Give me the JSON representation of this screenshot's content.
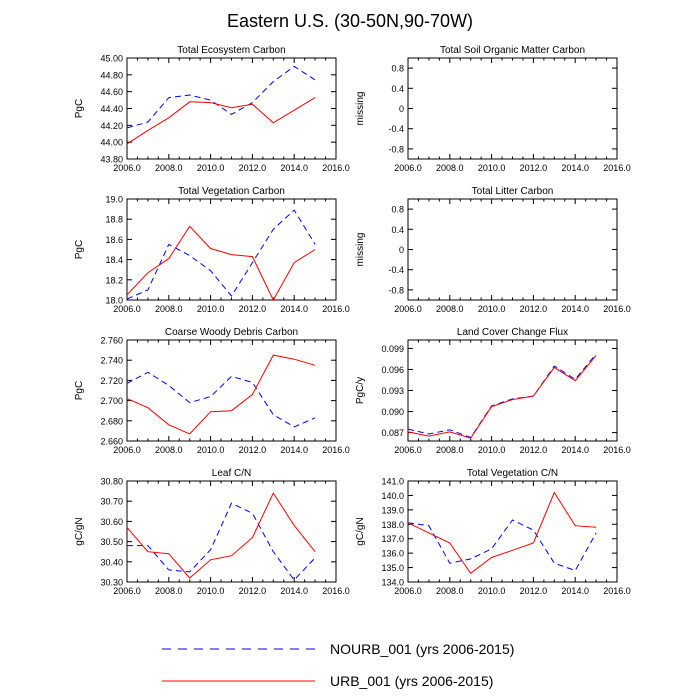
{
  "figure": {
    "title": "Eastern U.S. (30-50N,90-70W)"
  },
  "legend": [
    {
      "label": "NOURB_001 (yrs 2006-2015)",
      "color": "#0000ff",
      "style": "dashed"
    },
    {
      "label": "URB_001 (yrs 2006-2015)",
      "color": "#ff0000",
      "style": "solid"
    }
  ],
  "chart_data": [
    {
      "type": "line",
      "title": "Total Ecosystem Carbon",
      "ylabel": "PgC",
      "xlim": [
        2006,
        2016
      ],
      "xticks": [
        "2006.0",
        "2008.0",
        "2010.0",
        "2012.0",
        "2014.0",
        "2016.0"
      ],
      "ylim": [
        43.8,
        45.0
      ],
      "yticks": [
        "43.80",
        "44.00",
        "44.20",
        "44.40",
        "44.60",
        "44.80",
        "45.00"
      ],
      "x": [
        2006,
        2007,
        2008,
        2009,
        2010,
        2011,
        2012,
        2013,
        2014,
        2015
      ],
      "series": [
        {
          "name": "NOURB_001 (yrs 2006-2015)",
          "values": [
            44.17,
            44.24,
            44.53,
            44.56,
            44.5,
            44.33,
            44.47,
            44.72,
            44.9,
            44.74
          ]
        },
        {
          "name": "URB_001 (yrs 2006-2015)",
          "values": [
            43.98,
            44.14,
            44.29,
            44.48,
            44.47,
            44.41,
            44.45,
            44.23,
            44.38,
            44.53
          ]
        }
      ]
    },
    {
      "type": "line",
      "title": "Total Soil Organic Matter Carbon",
      "ylabel": "missing",
      "xlim": [
        2006,
        2016
      ],
      "xticks": [
        "2006.0",
        "2008.0",
        "2010.0",
        "2012.0",
        "2014.0",
        "2016.0"
      ],
      "ylim": [
        -1.0,
        1.0
      ],
      "yticks": [
        "-0.8",
        "-0.4",
        "0",
        "0.4",
        "0.8"
      ],
      "x": [],
      "series": []
    },
    {
      "type": "line",
      "title": "Total Vegetation Carbon",
      "ylabel": "PgC",
      "xlim": [
        2006,
        2016
      ],
      "xticks": [
        "2006.0",
        "2008.0",
        "2010.0",
        "2012.0",
        "2014.0",
        "2016.0"
      ],
      "ylim": [
        18.0,
        19.0
      ],
      "yticks": [
        "18.0",
        "18.2",
        "18.4",
        "18.6",
        "18.8",
        "19.0"
      ],
      "x": [
        2006,
        2007,
        2008,
        2009,
        2010,
        2011,
        2012,
        2013,
        2014,
        2015
      ],
      "series": [
        {
          "name": "NOURB_001 (yrs 2006-2015)",
          "values": [
            18.01,
            18.1,
            18.55,
            18.44,
            18.29,
            18.04,
            18.37,
            18.7,
            18.89,
            18.55
          ]
        },
        {
          "name": "URB_001 (yrs 2006-2015)",
          "values": [
            18.05,
            18.27,
            18.41,
            18.73,
            18.51,
            18.45,
            18.43,
            18.0,
            18.37,
            18.5
          ]
        }
      ]
    },
    {
      "type": "line",
      "title": "Total Litter Carbon",
      "ylabel": "missing",
      "xlim": [
        2006,
        2016
      ],
      "xticks": [
        "2006.0",
        "2008.0",
        "2010.0",
        "2012.0",
        "2014.0",
        "2016.0"
      ],
      "ylim": [
        -1.0,
        1.0
      ],
      "yticks": [
        "-0.8",
        "-0.4",
        "0",
        "0.4",
        "0.8"
      ],
      "x": [],
      "series": []
    },
    {
      "type": "line",
      "title": "Coarse Woody Debris Carbon",
      "ylabel": "PgC",
      "xlim": [
        2006,
        2016
      ],
      "xticks": [
        "2006.0",
        "2008.0",
        "2010.0",
        "2012.0",
        "2014.0",
        "2016.0"
      ],
      "ylim": [
        2.66,
        2.76
      ],
      "yticks": [
        "2.660",
        "2.680",
        "2.700",
        "2.720",
        "2.740",
        "2.760"
      ],
      "x": [
        2006,
        2007,
        2008,
        2009,
        2010,
        2011,
        2012,
        2013,
        2014,
        2015
      ],
      "series": [
        {
          "name": "NOURB_001 (yrs 2006-2015)",
          "values": [
            2.717,
            2.728,
            2.715,
            2.698,
            2.704,
            2.724,
            2.718,
            2.686,
            2.674,
            2.683
          ]
        },
        {
          "name": "URB_001 (yrs 2006-2015)",
          "values": [
            2.702,
            2.693,
            2.676,
            2.667,
            2.689,
            2.69,
            2.706,
            2.745,
            2.741,
            2.735
          ]
        }
      ]
    },
    {
      "type": "line",
      "title": "Land Cover Change Flux",
      "ylabel": "PgC/y",
      "xlim": [
        2006,
        2016
      ],
      "xticks": [
        "2006.0",
        "2008.0",
        "2010.0",
        "2012.0",
        "2014.0",
        "2016.0"
      ],
      "ylim": [
        0.0858,
        0.1002
      ],
      "yticks": [
        "0.087",
        "0.090",
        "0.093",
        "0.096",
        "0.099"
      ],
      "x": [
        2006,
        2007,
        2008,
        2009,
        2010,
        2011,
        2012,
        2013,
        2014,
        2015
      ],
      "series": [
        {
          "name": "NOURB_001 (yrs 2006-2015)",
          "values": [
            0.0875,
            0.0868,
            0.0874,
            0.0863,
            0.0908,
            0.0918,
            0.0922,
            0.0965,
            0.0946,
            0.0982
          ]
        },
        {
          "name": "URB_001 (yrs 2006-2015)",
          "values": [
            0.0871,
            0.0865,
            0.0871,
            0.0862,
            0.0907,
            0.0917,
            0.0922,
            0.0963,
            0.0944,
            0.098
          ]
        }
      ]
    },
    {
      "type": "line",
      "title": "Leaf C/N",
      "ylabel": "gC/gN",
      "xlim": [
        2006,
        2016
      ],
      "xticks": [
        "2006.0",
        "2008.0",
        "2010.0",
        "2012.0",
        "2014.0",
        "2016.0"
      ],
      "ylim": [
        30.3,
        30.8
      ],
      "yticks": [
        "30.30",
        "30.40",
        "30.50",
        "30.60",
        "30.70",
        "30.80"
      ],
      "x": [
        2006,
        2007,
        2008,
        2009,
        2010,
        2011,
        2012,
        2013,
        2014,
        2015
      ],
      "series": [
        {
          "name": "NOURB_001 (yrs 2006-2015)",
          "values": [
            30.48,
            30.48,
            30.36,
            30.35,
            30.46,
            30.69,
            30.64,
            30.45,
            30.31,
            30.42
          ]
        },
        {
          "name": "URB_001 (yrs 2006-2015)",
          "values": [
            30.57,
            30.45,
            30.44,
            30.32,
            30.41,
            30.43,
            30.52,
            30.74,
            30.58,
            30.45
          ]
        }
      ]
    },
    {
      "type": "line",
      "title": "Total Vegetation C/N",
      "ylabel": "gC/gN",
      "xlim": [
        2006,
        2016
      ],
      "xticks": [
        "2006.0",
        "2008.0",
        "2010.0",
        "2012.0",
        "2014.0",
        "2016.0"
      ],
      "ylim": [
        134.0,
        141.0
      ],
      "yticks": [
        "134.0",
        "135.0",
        "136.0",
        "137.0",
        "138.0",
        "139.0",
        "140.0",
        "141.0"
      ],
      "x": [
        2006,
        2007,
        2008,
        2009,
        2010,
        2011,
        2012,
        2013,
        2014,
        2015
      ],
      "series": [
        {
          "name": "NOURB_001 (yrs 2006-2015)",
          "values": [
            138.1,
            137.9,
            135.3,
            135.6,
            136.3,
            138.3,
            137.6,
            135.3,
            134.8,
            137.4
          ]
        },
        {
          "name": "URB_001 (yrs 2006-2015)",
          "values": [
            138.1,
            137.4,
            136.7,
            134.6,
            135.7,
            136.2,
            136.7,
            140.2,
            137.9,
            137.8
          ]
        }
      ]
    }
  ]
}
